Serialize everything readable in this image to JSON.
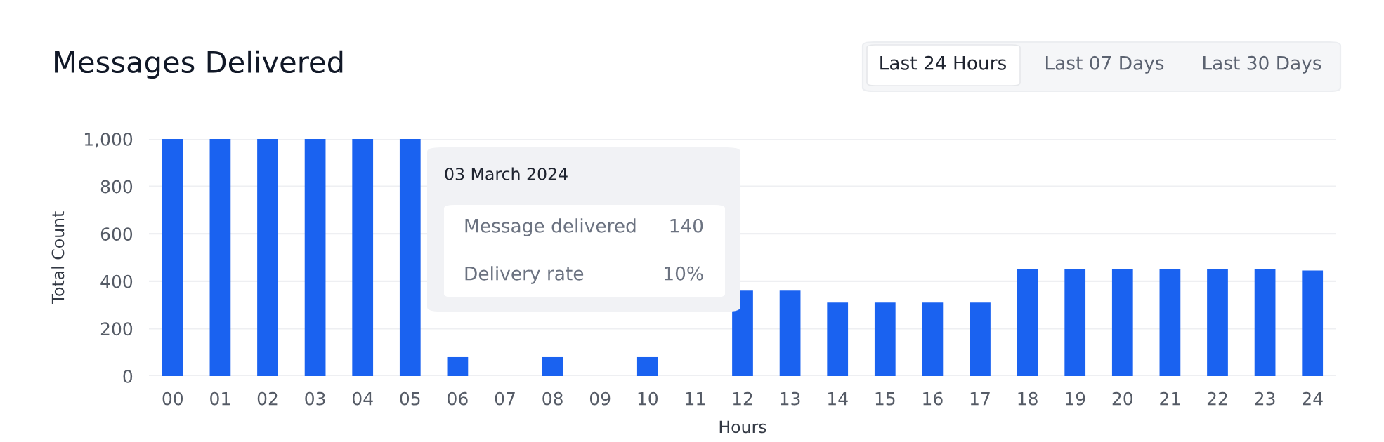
{
  "chart_data": {
    "type": "bar",
    "title": "Messages Delivered",
    "xlabel": "Hours",
    "ylabel": "Total Count",
    "categories": [
      "00",
      "01",
      "02",
      "03",
      "04",
      "05",
      "06",
      "07",
      "08",
      "09",
      "10",
      "11",
      "12",
      "13",
      "14",
      "15",
      "16",
      "17",
      "18",
      "19",
      "20",
      "21",
      "22",
      "23",
      "24"
    ],
    "values": [
      1000,
      1000,
      1000,
      1000,
      1000,
      1000,
      80,
      null,
      80,
      null,
      80,
      null,
      360,
      360,
      310,
      310,
      310,
      310,
      450,
      450,
      450,
      450,
      450,
      450,
      445
    ],
    "color": "#1a62f0",
    "ylim": [
      0,
      1000
    ],
    "yticks": [
      0,
      200,
      400,
      600,
      800,
      {
        "value": 1000,
        "label": "1,000"
      }
    ],
    "grid": "y",
    "annotations": [
      "Last 24 Hours",
      "Last 07 Days",
      "Last 30 Days",
      "03 March 2024",
      "Message delivered",
      "140",
      "Delivery rate",
      "10%"
    ]
  }
}
